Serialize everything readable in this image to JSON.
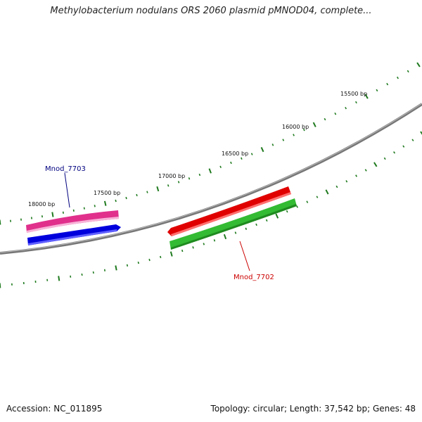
{
  "title": "Methylobacterium nodulans ORS 2060 plasmid pMNOD04, complete...",
  "footer": {
    "accession": "Accession: NC_011895",
    "summary": "Topology: circular; Length: 37,542 bp; Genes: 48"
  },
  "plasmid": {
    "length_bp": 37542,
    "topology": "circular"
  },
  "ticks": [
    {
      "bp": 18000,
      "label": "18000 bp"
    },
    {
      "bp": 17500,
      "label": "17500 bp"
    },
    {
      "bp": 17000,
      "label": "17000 bp"
    },
    {
      "bp": 16500,
      "label": "16500 bp"
    },
    {
      "bp": 16000,
      "label": "16000 bp"
    },
    {
      "bp": 15500,
      "label": "15500 bp"
    }
  ],
  "genes": [
    {
      "name": "Mnod_7703",
      "strand": "-",
      "label_color": "#000080"
    },
    {
      "name": "Mnod_7702",
      "strand": "-",
      "label_color": "#cc0000"
    }
  ],
  "colors": {
    "backbone": "#888888",
    "tick_marks": "#1f7a1f",
    "cds_top_gene": "#e0308c",
    "cds_top_gene2": "#e00000",
    "cds_bottom_gene": "#0000dd",
    "cds_bottom_gene2": "#33bb33"
  }
}
